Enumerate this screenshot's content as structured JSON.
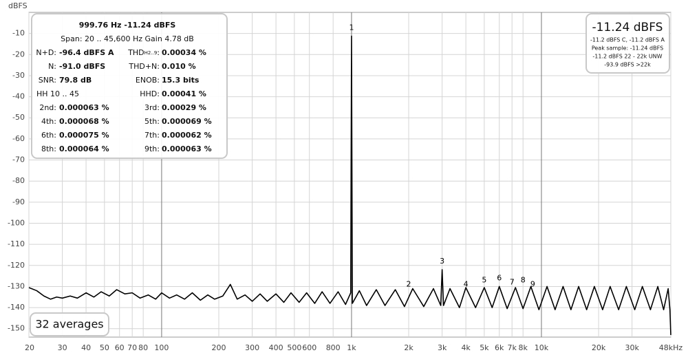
{
  "chart_data": {
    "type": "line",
    "y_label": "dBFS",
    "x_scale": "log",
    "grid": true,
    "xlim": [
      20,
      48000
    ],
    "ylim": [
      -154,
      0
    ],
    "yticks": [
      -10,
      -20,
      -30,
      -40,
      -50,
      -60,
      -70,
      -80,
      -90,
      -100,
      -110,
      -120,
      -130,
      -140,
      -150
    ],
    "xticks": [
      20,
      30,
      40,
      50,
      60,
      70,
      80,
      100,
      200,
      300,
      400,
      500,
      600,
      800,
      {
        "value": 1000,
        "label": "1k"
      },
      {
        "value": 2000,
        "label": "2k"
      },
      {
        "value": 3000,
        "label": "3k"
      },
      {
        "value": 4000,
        "label": "4k"
      },
      {
        "value": 5000,
        "label": "5k"
      },
      {
        "value": 6000,
        "label": "6k"
      },
      {
        "value": 7000,
        "label": "7k"
      },
      {
        "value": 8000,
        "label": "8k"
      },
      {
        "value": 10000,
        "label": "10k"
      },
      {
        "value": 20000,
        "label": "20k"
      },
      {
        "value": 30000,
        "label": "30k"
      },
      {
        "value": 48000,
        "label": "48kHz"
      }
    ],
    "series": [
      {
        "color": "#000000",
        "x": [
          20,
          22,
          24,
          26,
          28,
          30,
          33,
          36,
          40,
          44,
          48,
          53,
          58,
          64,
          70,
          77,
          85,
          93,
          100,
          110,
          120,
          132,
          145,
          160,
          175,
          190,
          210,
          230,
          250,
          275,
          300,
          330,
          360,
          400,
          440,
          480,
          530,
          580,
          640,
          700,
          770,
          850,
          930,
          990,
          1000,
          1010,
          1100,
          1200,
          1350,
          1500,
          1700,
          1900,
          2100,
          2400,
          2700,
          2950,
          3000,
          3050,
          3300,
          3700,
          4000,
          4500,
          5000,
          5500,
          6000,
          6600,
          7300,
          8000,
          8800,
          9700,
          10700,
          11800,
          13000,
          14300,
          15700,
          17300,
          19000,
          21000,
          23000,
          25500,
          28000,
          31000,
          34000,
          37500,
          41000,
          44000,
          46500,
          47500,
          48000
        ],
        "values": [
          -130.5,
          -132,
          -134.5,
          -136,
          -135,
          -135.5,
          -134.5,
          -135.5,
          -133,
          -135,
          -132.5,
          -134.5,
          -131.5,
          -133.5,
          -133,
          -135.5,
          -134,
          -136,
          -133,
          -135.5,
          -134,
          -136,
          -133,
          -136.5,
          -134,
          -136,
          -134.5,
          -129,
          -136,
          -134,
          -137,
          -133.5,
          -137,
          -133.5,
          -137.5,
          -133,
          -137.5,
          -133,
          -138,
          -132.5,
          -138,
          -132.5,
          -138.5,
          -133,
          -11.24,
          -138,
          -132,
          -139,
          -131.5,
          -139,
          -131.5,
          -139.5,
          -131,
          -139.5,
          -131,
          -139,
          -122,
          -139,
          -131,
          -140,
          -130.5,
          -140,
          -130.5,
          -140,
          -130,
          -140.5,
          -130.5,
          -140.5,
          -130,
          -141,
          -130,
          -141,
          -130,
          -141,
          -130,
          -141,
          -130,
          -141,
          -130,
          -141,
          -130,
          -141,
          -130,
          -141,
          -130,
          -141,
          -131,
          -141,
          -153
        ]
      }
    ],
    "harmonic_markers": [
      {
        "label": "1",
        "x": 1000,
        "y": -11.24
      },
      {
        "label": "2",
        "x": 2000,
        "y": -133
      },
      {
        "label": "3",
        "x": 3000,
        "y": -122
      },
      {
        "label": "4",
        "x": 4000,
        "y": -133
      },
      {
        "label": "5",
        "x": 5000,
        "y": -131
      },
      {
        "label": "6",
        "x": 6000,
        "y": -130
      },
      {
        "label": "7",
        "x": 7000,
        "y": -132
      },
      {
        "label": "8",
        "x": 8000,
        "y": -131
      },
      {
        "label": "9",
        "x": 9000,
        "y": -133
      }
    ],
    "averages": "32 averages",
    "info_panel": {
      "title": "999.76 Hz  -11.24 dBFS",
      "span": "Span: 20 .. 45,600 Hz   Gain 4.78 dB",
      "rows": [
        {
          "left": [
            "N+D:",
            "-96.4 dBFS A"
          ],
          "right": [
            "THD",
            "H2..9",
            ":",
            "0.00034 %"
          ]
        },
        {
          "left": [
            "N:",
            "-91.0 dBFS"
          ],
          "right": [
            "THD+N:",
            "0.010 %"
          ]
        },
        {
          "left": [
            "SNR:",
            "79.8 dB"
          ],
          "right": [
            "ENOB:",
            "15.3 bits"
          ]
        },
        {
          "left": [
            "HH 10 .. 45"
          ],
          "right": [
            "HHD:",
            "0.00041 %"
          ]
        },
        {
          "left": [
            "2nd:",
            "0.000063 %"
          ],
          "right": [
            "3rd:",
            "0.00029 %"
          ]
        },
        {
          "left": [
            "4th:",
            "0.000068 %"
          ],
          "right": [
            "5th:",
            "0.000069 %"
          ]
        },
        {
          "left": [
            "6th:",
            "0.000075 %"
          ],
          "right": [
            "7th:",
            "0.000062 %"
          ]
        },
        {
          "left": [
            "8th:",
            "0.000064 %"
          ],
          "right": [
            "9th:",
            "0.000063 %"
          ]
        }
      ]
    },
    "level_panel": {
      "main": "-11.24 dBFS",
      "lines": [
        "-11.2 dBFS C, -11.2 dBFS A",
        "Peak sample: -11.24 dBFS",
        "-11.2 dBFS 22 - 22k UNW",
        "-93.9 dBFS >22k"
      ]
    }
  }
}
